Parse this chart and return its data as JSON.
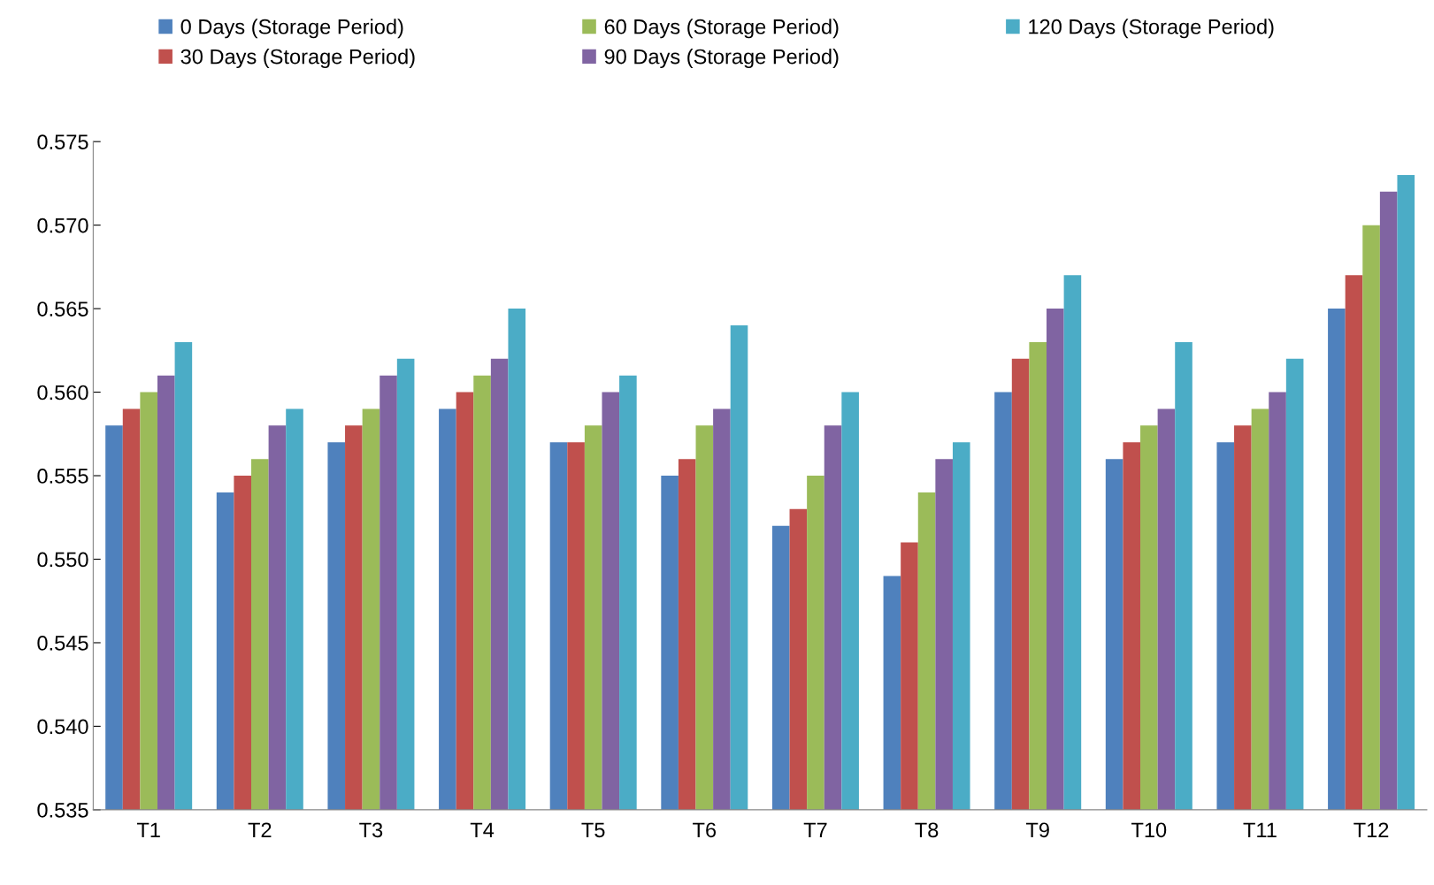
{
  "chart_data": {
    "type": "bar",
    "categories": [
      "T1",
      "T2",
      "T3",
      "T4",
      "T5",
      "T6",
      "T7",
      "T8",
      "T9",
      "T10",
      "T11",
      "T12"
    ],
    "series": [
      {
        "name": "0 Days (Storage Period)",
        "color": "#4f81bd",
        "values": [
          0.558,
          0.554,
          0.557,
          0.559,
          0.557,
          0.555,
          0.552,
          0.549,
          0.56,
          0.556,
          0.557,
          0.565
        ]
      },
      {
        "name": "30 Days (Storage Period)",
        "color": "#c0504d",
        "values": [
          0.559,
          0.555,
          0.558,
          0.56,
          0.557,
          0.556,
          0.553,
          0.551,
          0.562,
          0.557,
          0.558,
          0.567
        ]
      },
      {
        "name": "60 Days (Storage Period)",
        "color": "#9bbb59",
        "values": [
          0.56,
          0.556,
          0.559,
          0.561,
          0.558,
          0.558,
          0.555,
          0.554,
          0.563,
          0.558,
          0.559,
          0.57
        ]
      },
      {
        "name": "90 Days (Storage Period)",
        "color": "#8064a2",
        "values": [
          0.561,
          0.558,
          0.561,
          0.562,
          0.56,
          0.559,
          0.558,
          0.556,
          0.565,
          0.559,
          0.56,
          0.572
        ]
      },
      {
        "name": "120 Days (Storage Period)",
        "color": "#4bacc6",
        "values": [
          0.563,
          0.559,
          0.562,
          0.565,
          0.561,
          0.564,
          0.56,
          0.557,
          0.567,
          0.563,
          0.562,
          0.573
        ]
      }
    ],
    "ylim": [
      0.535,
      0.575
    ],
    "yticks": [
      {
        "value": 0.535,
        "label": "0.535"
      },
      {
        "value": 0.54,
        "label": "0.540"
      },
      {
        "value": 0.545,
        "label": "0.545"
      },
      {
        "value": 0.55,
        "label": "0.550"
      },
      {
        "value": 0.555,
        "label": "0.555"
      },
      {
        "value": 0.56,
        "label": "0.560"
      },
      {
        "value": 0.565,
        "label": "0.565"
      },
      {
        "value": 0.57,
        "label": "0.570"
      },
      {
        "value": 0.575,
        "label": "0.575"
      }
    ],
    "grid": false,
    "legend": "top"
  }
}
